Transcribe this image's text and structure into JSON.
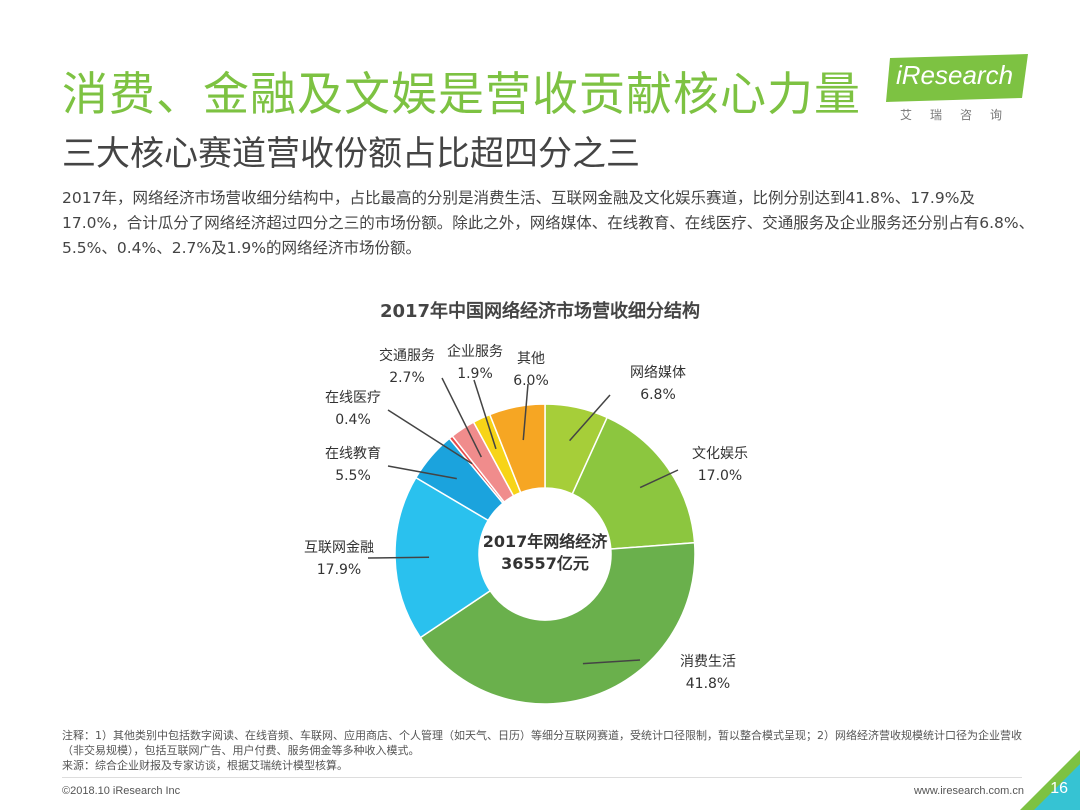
{
  "header": {
    "title": "消费、金融及文娱是营收贡献核心力量",
    "subtitle": "三大核心赛道营收份额占比超四分之三"
  },
  "logo": {
    "brand": "iResearch",
    "cn": "艾瑞咨询"
  },
  "paragraph": "2017年，网络经济市场营收细分结构中，占比最高的分别是消费生活、互联网金融及文化娱乐赛道，比例分别达到41.8%、17.9%及17.0%，合计瓜分了网络经济超过四分之三的市场份额。除此之外，网络媒体、在线教育、在线医疗、交通服务及企业服务还分别占有6.8%、5.5%、0.4%、2.7%及1.9%的网络经济市场份额。",
  "chart_data": {
    "type": "pie",
    "title": "2017年中国网络经济市场营收细分结构",
    "center_line1": "2017年网络经济",
    "center_line2": "36557亿元",
    "slices": [
      {
        "name": "网络媒体",
        "value": 6.8,
        "label": "6.8%",
        "color": "#A6CE39"
      },
      {
        "name": "文化娱乐",
        "value": 17.0,
        "label": "17.0%",
        "color": "#8CC63F"
      },
      {
        "name": "消费生活",
        "value": 41.8,
        "label": "41.8%",
        "color": "#6AB04C"
      },
      {
        "name": "互联网金融",
        "value": 17.9,
        "label": "17.9%",
        "color": "#2AC1EE"
      },
      {
        "name": "在线教育",
        "value": 5.5,
        "label": "5.5%",
        "color": "#1BA3DD"
      },
      {
        "name": "在线医疗",
        "value": 0.4,
        "label": "0.4%",
        "color": "#E84C4C"
      },
      {
        "name": "交通服务",
        "value": 2.7,
        "label": "2.7%",
        "color": "#F08C8C"
      },
      {
        "name": "企业服务",
        "value": 1.9,
        "label": "1.9%",
        "color": "#F7D417"
      },
      {
        "name": "其他",
        "value": 6.0,
        "label": "6.0%",
        "color": "#F6A623"
      }
    ]
  },
  "notes": {
    "line1": "注释：1）其他类别中包括数字阅读、在线音频、车联网、应用商店、个人管理（如天气、日历）等细分互联网赛道，受统计口径限制，暂以整合模式呈现；2）网络经济营收规模统计口径为企业营收（非交易规模），包括互联网广告、用户付费、服务佣金等多种收入模式。",
    "line2": "来源：综合企业财报及专家访谈，根据艾瑞统计模型核算。"
  },
  "footer": {
    "copyright": "©2018.10 iResearch Inc",
    "site": "www.iresearch.com.cn",
    "page": "16"
  },
  "colors": {
    "title_green": "#7DC242",
    "logo_green": "#7DC242",
    "corner_green": "#7DC242",
    "corner_cyan": "#29C3EC"
  }
}
